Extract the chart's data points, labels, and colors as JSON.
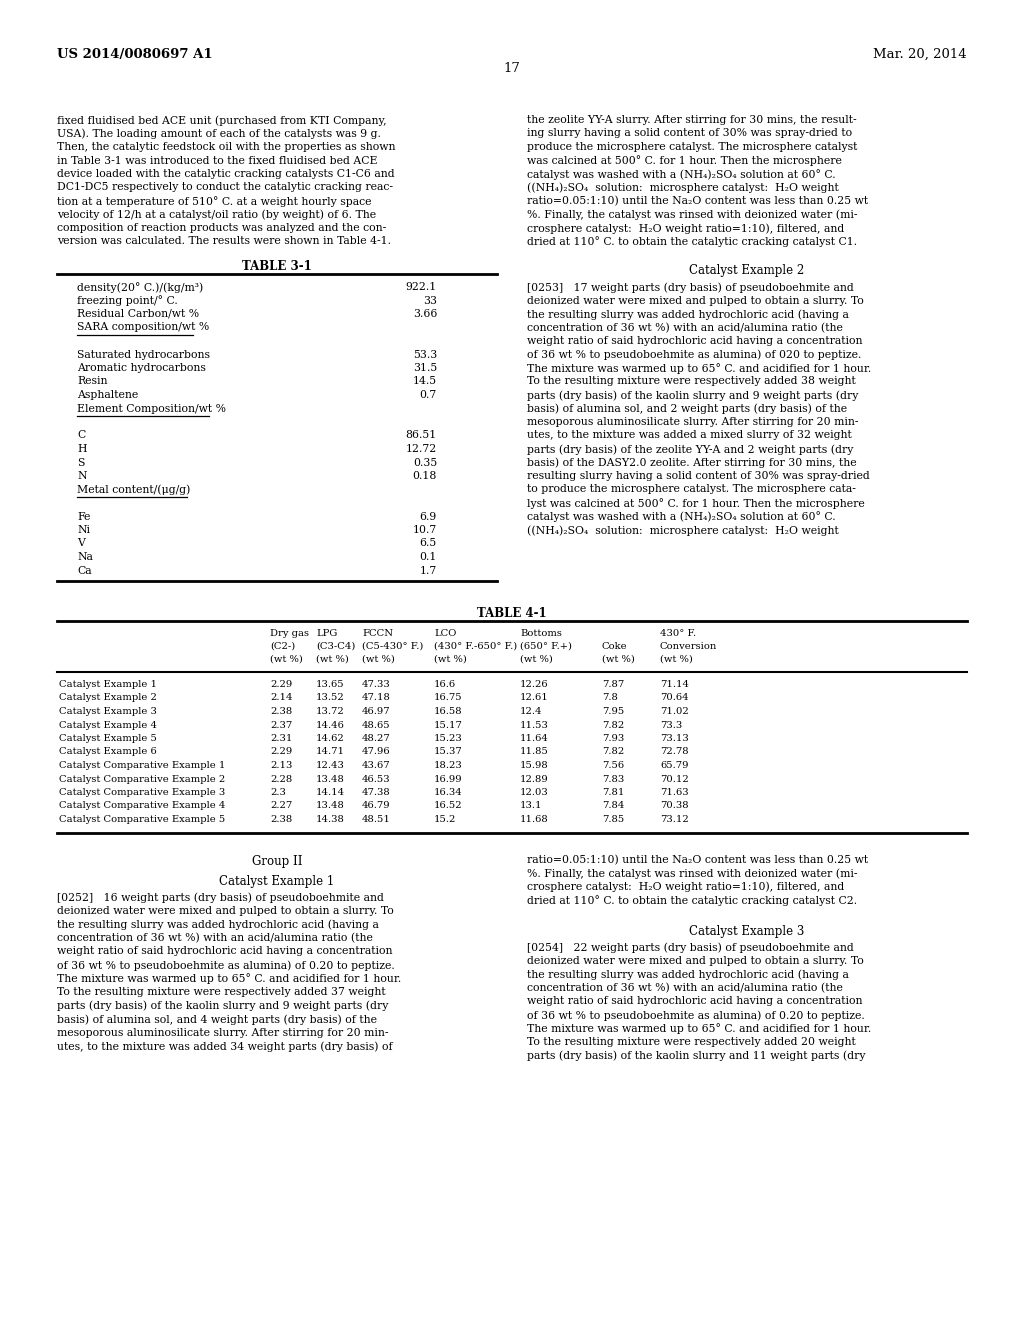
{
  "page_number": "17",
  "header_left": "US 2014/0080697 A1",
  "header_right": "Mar. 20, 2014",
  "background_color": "#ffffff",
  "left_col_text": [
    "fixed fluidised bed ACE unit (purchased from KTI Company,",
    "USA). The loading amount of each of the catalysts was 9 g.",
    "Then, the catalytic feedstock oil with the properties as shown",
    "in Table 3-1 was introduced to the fixed fluidised bed ACE",
    "device loaded with the catalytic cracking catalysts C1-C6 and",
    "DC1-DC5 respectively to conduct the catalytic cracking reac-",
    "tion at a temperature of 510° C. at a weight hourly space",
    "velocity of 12/h at a catalyst/oil ratio (by weight) of 6. The",
    "composition of reaction products was analyzed and the con-",
    "version was calculated. The results were shown in Table 4-1."
  ],
  "right_col_text_top": [
    "the zeolite YY-A slurry. After stirring for 30 mins, the result-",
    "ing slurry having a solid content of 30% was spray-dried to",
    "produce the microsphere catalyst. The microsphere catalyst",
    "was calcined at 500° C. for 1 hour. Then the microsphere",
    "catalyst was washed with a (NH₄)₂SO₄ solution at 60° C.",
    "((NH₄)₂SO₄  solution:  microsphere catalyst:  H₂O weight",
    "ratio=0.05:1:10) until the Na₂O content was less than 0.25 wt",
    "%. Finally, the catalyst was rinsed with deionized water (mi-",
    "crosphere catalyst:  H₂O weight ratio=1:10), filtered, and",
    "dried at 110° C. to obtain the catalytic cracking catalyst C1."
  ],
  "catalyst_example2_heading": "Catalyst Example 2",
  "catalyst_example2_lines": [
    "[0253]   17 weight parts (dry basis) of pseudoboehmite and",
    "deionized water were mixed and pulped to obtain a slurry. To",
    "the resulting slurry was added hydrochloric acid (having a",
    "concentration of 36 wt %) with an acid/alumina ratio (the",
    "weight ratio of said hydrochloric acid having a concentration",
    "of 36 wt % to pseudoboehmite as alumina) of 020 to peptize.",
    "The mixture was warmed up to 65° C. and acidified for 1 hour.",
    "To the resulting mixture were respectively added 38 weight",
    "parts (dry basis) of the kaolin slurry and 9 weight parts (dry",
    "basis) of alumina sol, and 2 weight parts (dry basis) of the",
    "mesoporous aluminosilicate slurry. After stirring for 20 min-",
    "utes, to the mixture was added a mixed slurry of 32 weight",
    "parts (dry basis) of the zeolite YY-A and 2 weight parts (dry",
    "basis) of the DASY2.0 zeolite. After stirring for 30 mins, the",
    "resulting slurry having a solid content of 30% was spray-dried",
    "to produce the microsphere catalyst. The microsphere cata-",
    "lyst was calcined at 500° C. for 1 hour. Then the microsphere",
    "catalyst was washed with a (NH₄)₂SO₄ solution at 60° C.",
    "((NH₄)₂SO₄  solution:  microsphere catalyst:  H₂O weight"
  ],
  "table31_title": "TABLE 3-1",
  "table31_rows": [
    [
      "density(20° C.)/(kg/m³)",
      "922.1",
      false
    ],
    [
      "freezing point/° C.",
      "33",
      false
    ],
    [
      "Residual Carbon/wt %",
      "3.66",
      false
    ],
    [
      "SARA composition/wt %",
      "",
      true
    ],
    [
      "",
      "",
      false
    ],
    [
      "Saturated hydrocarbons",
      "53.3",
      false
    ],
    [
      "Aromatic hydrocarbons",
      "31.5",
      false
    ],
    [
      "Resin",
      "14.5",
      false
    ],
    [
      "Asphaltene",
      "0.7",
      false
    ],
    [
      "Element Composition/wt %",
      "",
      true
    ],
    [
      "",
      "",
      false
    ],
    [
      "C",
      "86.51",
      false
    ],
    [
      "H",
      "12.72",
      false
    ],
    [
      "S",
      "0.35",
      false
    ],
    [
      "N",
      "0.18",
      false
    ],
    [
      "Metal content/(μg/g)",
      "",
      true
    ],
    [
      "",
      "",
      false
    ],
    [
      "Fe",
      "6.9",
      false
    ],
    [
      "Ni",
      "10.7",
      false
    ],
    [
      "V",
      "6.5",
      false
    ],
    [
      "Na",
      "0.1",
      false
    ],
    [
      "Ca",
      "1.7",
      false
    ]
  ],
  "table41_title": "TABLE 4-1",
  "table41_col_headers_1": [
    "",
    "Dry gas",
    "LPG",
    "FCCN",
    "LCO",
    "Bottoms",
    "",
    "430° F."
  ],
  "table41_col_headers_2": [
    "",
    "(C2-)",
    "(C3-C4)",
    "(C5-430° F.)",
    "(430° F.-650° F.)",
    "(650° F.+)",
    "Coke",
    "Conversion"
  ],
  "table41_col_headers_3": [
    "",
    "(wt %)",
    "(wt %)",
    "(wt %)",
    "(wt %)",
    "(wt %)",
    "(wt %)",
    "(wt %)"
  ],
  "table41_data": [
    [
      "Catalyst Example 1",
      "2.29",
      "13.65",
      "47.33",
      "16.6",
      "12.26",
      "7.87",
      "71.14"
    ],
    [
      "Catalyst Example 2",
      "2.14",
      "13.52",
      "47.18",
      "16.75",
      "12.61",
      "7.8",
      "70.64"
    ],
    [
      "Catalyst Example 3",
      "2.38",
      "13.72",
      "46.97",
      "16.58",
      "12.4",
      "7.95",
      "71.02"
    ],
    [
      "Catalyst Example 4",
      "2.37",
      "14.46",
      "48.65",
      "15.17",
      "11.53",
      "7.82",
      "73.3"
    ],
    [
      "Catalyst Example 5",
      "2.31",
      "14.62",
      "48.27",
      "15.23",
      "11.64",
      "7.93",
      "73.13"
    ],
    [
      "Catalyst Example 6",
      "2.29",
      "14.71",
      "47.96",
      "15.37",
      "11.85",
      "7.82",
      "72.78"
    ],
    [
      "Catalyst Comparative Example 1",
      "2.13",
      "12.43",
      "43.67",
      "18.23",
      "15.98",
      "7.56",
      "65.79"
    ],
    [
      "Catalyst Comparative Example 2",
      "2.28",
      "13.48",
      "46.53",
      "16.99",
      "12.89",
      "7.83",
      "70.12"
    ],
    [
      "Catalyst Comparative Example 3",
      "2.3",
      "14.14",
      "47.38",
      "16.34",
      "12.03",
      "7.81",
      "71.63"
    ],
    [
      "Catalyst Comparative Example 4",
      "2.27",
      "13.48",
      "46.79",
      "16.52",
      "13.1",
      "7.84",
      "70.38"
    ],
    [
      "Catalyst Comparative Example 5",
      "2.38",
      "14.38",
      "48.51",
      "15.2",
      "11.68",
      "7.85",
      "73.12"
    ]
  ],
  "group2_heading": "Group II",
  "catalyst_example1_heading": "Catalyst Example 1",
  "catalyst_example1_lines": [
    "[0252]   16 weight parts (dry basis) of pseudoboehmite and",
    "deionized water were mixed and pulped to obtain a slurry. To",
    "the resulting slurry was added hydrochloric acid (having a",
    "concentration of 36 wt %) with an acid/alumina ratio (the",
    "weight ratio of said hydrochloric acid having a concentration",
    "of 36 wt % to pseudoboehmite as alumina) of 0.20 to peptize.",
    "The mixture was warmed up to 65° C. and acidified for 1 hour.",
    "To the resulting mixture were respectively added 37 weight",
    "parts (dry basis) of the kaolin slurry and 9 weight parts (dry",
    "basis) of alumina sol, and 4 weight parts (dry basis) of the",
    "mesoporous aluminosilicate slurry. After stirring for 20 min-",
    "utes, to the mixture was added 34 weight parts (dry basis) of"
  ],
  "right_col_group2_lines": [
    "ratio=0.05:1:10) until the Na₂O content was less than 0.25 wt",
    "%. Finally, the catalyst was rinsed with deionized water (mi-",
    "crosphere catalyst:  H₂O weight ratio=1:10), filtered, and",
    "dried at 110° C. to obtain the catalytic cracking catalyst C2."
  ],
  "catalyst_example3_heading": "Catalyst Example 3",
  "catalyst_example3_lines": [
    "[0254]   22 weight parts (dry basis) of pseudoboehmite and",
    "deionized water were mixed and pulped to obtain a slurry. To",
    "the resulting slurry was added hydrochloric acid (having a",
    "concentration of 36 wt %) with an acid/alumina ratio (the",
    "weight ratio of said hydrochloric acid having a concentration",
    "of 36 wt % to pseudoboehmite as alumina) of 0.20 to peptize.",
    "The mixture was warmed up to 65° C. and acidified for 1 hour.",
    "To the resulting mixture were respectively added 20 weight",
    "parts (dry basis) of the kaolin slurry and 11 weight parts (dry"
  ]
}
